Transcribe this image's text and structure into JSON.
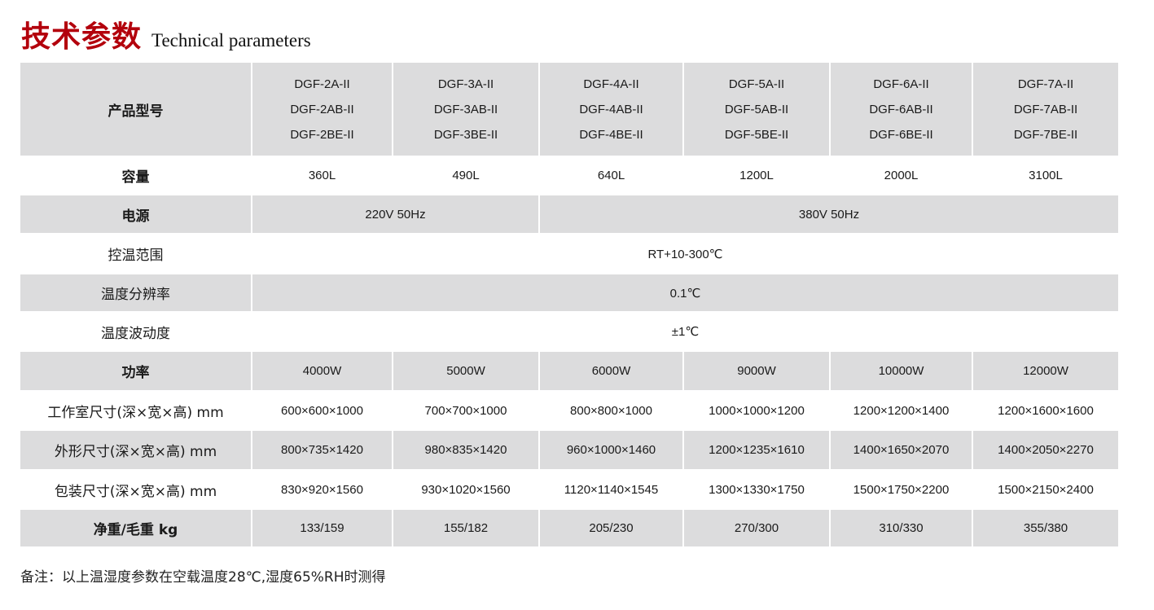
{
  "title": {
    "cn": "技术参数",
    "en": "Technical parameters"
  },
  "colors": {
    "title_red": "#b3000c",
    "row_gray": "#dcdcdd"
  },
  "table": {
    "header": {
      "label": "产品型号",
      "models": [
        [
          "DGF-2A-II",
          "DGF-2AB-II",
          "DGF-2BE-II"
        ],
        [
          "DGF-3A-II",
          "DGF-3AB-II",
          "DGF-3BE-II"
        ],
        [
          "DGF-4A-II",
          "DGF-4AB-II",
          "DGF-4BE-II"
        ],
        [
          "DGF-5A-II",
          "DGF-5AB-II",
          "DGF-5BE-II"
        ],
        [
          "DGF-6A-II",
          "DGF-6AB-II",
          "DGF-6BE-II"
        ],
        [
          "DGF-7A-II",
          "DGF-7AB-II",
          "DGF-7BE-II"
        ]
      ]
    },
    "rows": [
      {
        "label": "容量",
        "cells": [
          "360L",
          "490L",
          "640L",
          "1200L",
          "2000L",
          "3100L"
        ]
      },
      {
        "label": "电源",
        "cells": [
          "220V  50Hz",
          "380V  50Hz"
        ]
      },
      {
        "label": "控温范围",
        "cells": [
          "RT+10-300℃"
        ]
      },
      {
        "label": "温度分辨率",
        "cells": [
          "0.1℃"
        ]
      },
      {
        "label": "温度波动度",
        "cells": [
          "±1℃"
        ]
      },
      {
        "label": "功率",
        "cells": [
          "4000W",
          "5000W",
          "6000W",
          "9000W",
          "10000W",
          "12000W"
        ]
      },
      {
        "label": "工作室尺寸(深×宽×高) mm",
        "cells": [
          "600×600×1000",
          "700×700×1000",
          "800×800×1000",
          "1000×1000×1200",
          "1200×1200×1400",
          "1200×1600×1600"
        ]
      },
      {
        "label": "外形尺寸(深×宽×高) mm",
        "cells": [
          "800×735×1420",
          "980×835×1420",
          "960×1000×1460",
          "1200×1235×1610",
          "1400×1650×2070",
          "1400×2050×2270"
        ]
      },
      {
        "label": "包装尺寸(深×宽×高) mm",
        "cells": [
          "830×920×1560",
          "930×1020×1560",
          "1120×1140×1545",
          "1300×1330×1750",
          "1500×1750×2200",
          "1500×2150×2400"
        ]
      },
      {
        "label": "净重/毛重 kg",
        "cells": [
          "133/159",
          "155/182",
          "205/230",
          "270/300",
          "310/330",
          "355/380"
        ]
      }
    ]
  },
  "note": "备注：以上温湿度参数在空载温度28℃,湿度65%RH时测得"
}
